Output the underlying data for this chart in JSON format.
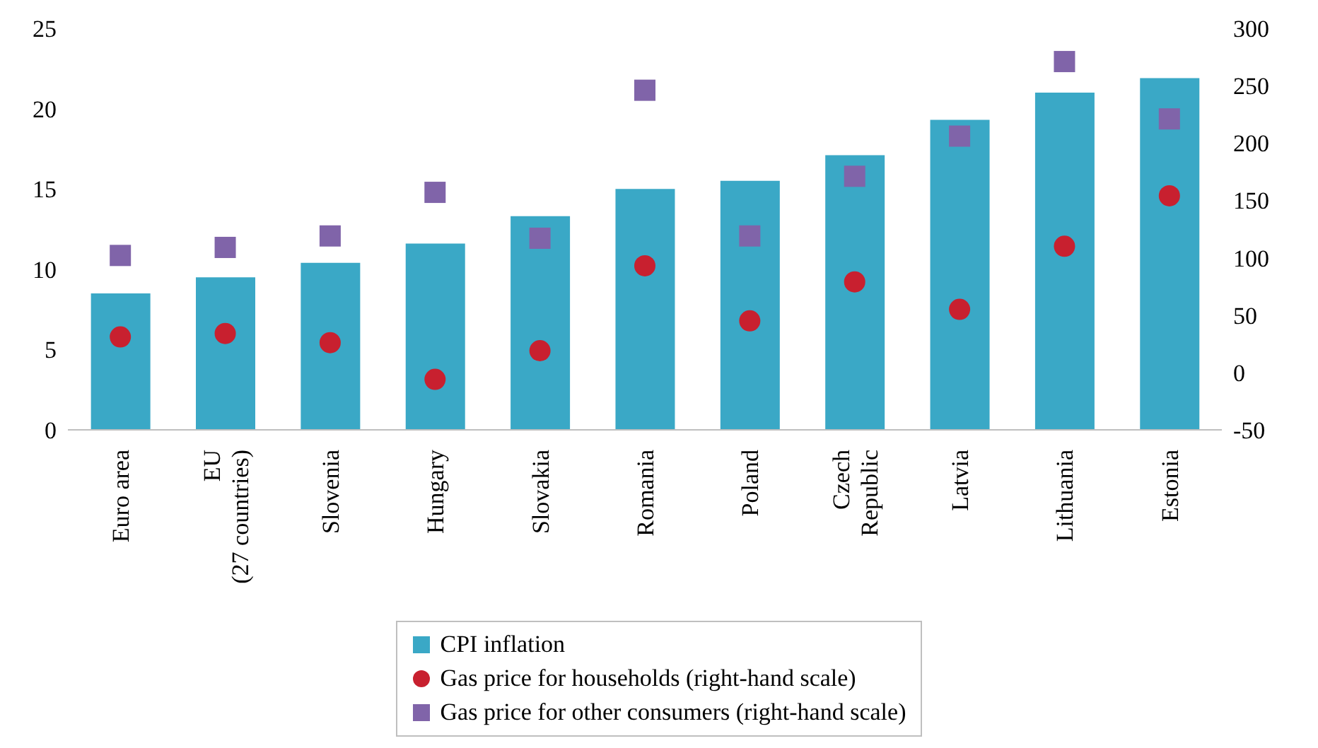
{
  "chart_data": {
    "type": "bar",
    "categories": [
      "Euro area",
      "EU\n(27 countries)",
      "Slovenia",
      "Hungary",
      "Slovakia",
      "Romania",
      "Poland",
      "Czech\nRepublic",
      "Latvia",
      "Lithuania",
      "Estonia"
    ],
    "series": [
      {
        "name": "CPI inflation",
        "color": "#3aa8c6",
        "values": [
          8.5,
          9.5,
          10.4,
          11.6,
          13.3,
          15.0,
          15.5,
          17.1,
          19.3,
          21.0,
          21.9
        ]
      },
      {
        "name": "Gas price for households (right-hand scale)",
        "type": "scatter",
        "axis": "y2",
        "marker": "circle",
        "color": "#c8202f",
        "values": [
          31,
          34,
          26,
          -6,
          19,
          93,
          45,
          79,
          55,
          110,
          154
        ]
      },
      {
        "name": "Gas price for other consumers (right-hand scale)",
        "type": "scatter",
        "axis": "y2",
        "marker": "square",
        "color": "#8064a9",
        "values": [
          102,
          109,
          119,
          157,
          117,
          246,
          119,
          171,
          206,
          271,
          221
        ]
      }
    ],
    "ylim": [
      0,
      25
    ],
    "yticks": [
      0,
      5,
      10,
      15,
      20,
      25
    ],
    "y2lim": [
      -50,
      300
    ],
    "y2ticks": [
      -50,
      0,
      50,
      100,
      150,
      200,
      250,
      300
    ],
    "grid": false,
    "legend": "bottom"
  }
}
